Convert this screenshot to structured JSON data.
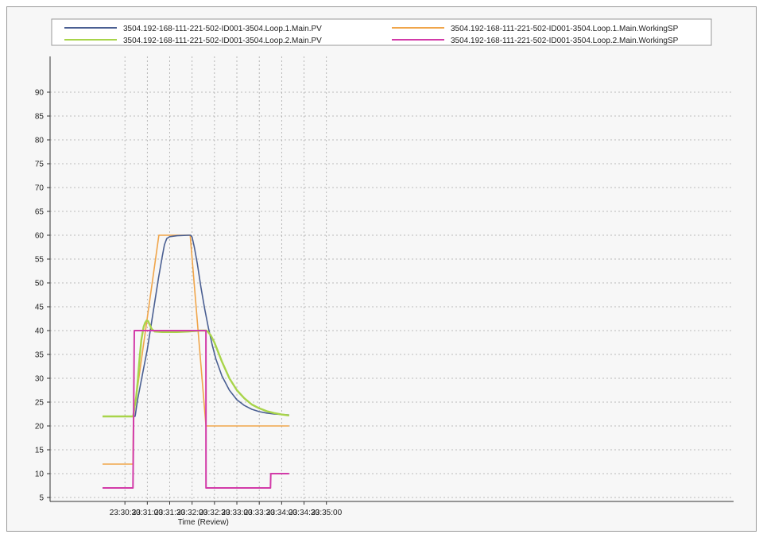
{
  "chart_data": {
    "type": "line",
    "title": "",
    "xlabel": "Time (Review)",
    "ylabel": "",
    "ylim": [
      4,
      95
    ],
    "xlim_seconds": [
      1800,
      2100
    ],
    "grid": true,
    "legend_position": "top",
    "y_ticks": [
      5,
      10,
      15,
      20,
      25,
      30,
      35,
      40,
      45,
      50,
      55,
      60,
      65,
      70,
      75,
      80,
      85,
      90
    ],
    "x_ticks": [
      {
        "t": 1830,
        "label": "23:30:30"
      },
      {
        "t": 1860,
        "label": "23:31:00"
      },
      {
        "t": 1890,
        "label": "23:31:30"
      },
      {
        "t": 1920,
        "label": "23:32:00"
      },
      {
        "t": 1950,
        "label": "23:32:30"
      },
      {
        "t": 1980,
        "label": "23:33:00"
      },
      {
        "t": 2010,
        "label": "23:33:30"
      },
      {
        "t": 2040,
        "label": "23:34:00"
      },
      {
        "t": 2070,
        "label": "23:34:30"
      },
      {
        "t": 2100,
        "label": "23:35:00"
      }
    ],
    "series": [
      {
        "name": "3504.192-168-111-221-502-ID001-3504.Loop.1.Main.PV",
        "color": "#4a5f92",
        "points": [
          [
            1842.5,
            22
          ],
          [
            1843.5,
            22
          ],
          [
            1844,
            22.3
          ],
          [
            1845,
            23.5
          ],
          [
            1847,
            25.5
          ],
          [
            1850,
            28
          ],
          [
            1855,
            32
          ],
          [
            1860,
            36
          ],
          [
            1865,
            41
          ],
          [
            1870,
            46
          ],
          [
            1875,
            51
          ],
          [
            1880,
            55.5
          ],
          [
            1883,
            58
          ],
          [
            1886,
            59.3
          ],
          [
            1890,
            59.7
          ],
          [
            1900,
            59.9
          ],
          [
            1915,
            60
          ],
          [
            1918,
            60
          ],
          [
            1920,
            59.6
          ],
          [
            1923,
            57.5
          ],
          [
            1927,
            54
          ],
          [
            1932,
            49
          ],
          [
            1937,
            44.5
          ],
          [
            1942,
            40.5
          ],
          [
            1947,
            37
          ],
          [
            1952,
            34
          ],
          [
            1960,
            30.5
          ],
          [
            1970,
            27.5
          ],
          [
            1980,
            25.5
          ],
          [
            1990,
            24.3
          ],
          [
            2000,
            23.5
          ],
          [
            2010,
            23
          ],
          [
            2020,
            22.7
          ],
          [
            2030,
            22.5
          ],
          [
            2040,
            22.4
          ],
          [
            2050,
            22.3
          ]
        ]
      },
      {
        "name": "3504.192-168-111-221-502-ID001-3504.Loop.1.Main.WorkingSP",
        "color": "#f0a54a",
        "points": [
          [
            1800,
            12
          ],
          [
            1840.8,
            12
          ],
          [
            1841.4,
            22
          ],
          [
            1875.5,
            60
          ],
          [
            1917.5,
            60
          ],
          [
            1938.3,
            20.5
          ],
          [
            1938.8,
            20
          ],
          [
            2050,
            20
          ]
        ]
      },
      {
        "name": "3504.192-168-111-221-502-ID001-3504.Loop.2.Main.PV",
        "color": "#a8d44a",
        "points": [
          [
            1800,
            22
          ],
          [
            1841,
            22
          ],
          [
            1842,
            23
          ],
          [
            1845,
            26
          ],
          [
            1847,
            29
          ],
          [
            1849.5,
            34
          ],
          [
            1852,
            38
          ],
          [
            1855,
            40.7
          ],
          [
            1857,
            41.6
          ],
          [
            1859,
            42.1
          ],
          [
            1861,
            42
          ],
          [
            1863,
            41.3
          ],
          [
            1866,
            40.3
          ],
          [
            1870,
            39.8
          ],
          [
            1880,
            39.7
          ],
          [
            1890,
            39.7
          ],
          [
            1900,
            39.7
          ],
          [
            1915,
            39.8
          ],
          [
            1930,
            40
          ],
          [
            1939,
            40
          ],
          [
            1941,
            39.8
          ],
          [
            1945,
            39
          ],
          [
            1950,
            37.5
          ],
          [
            1955,
            35.5
          ],
          [
            1960,
            33.5
          ],
          [
            1970,
            30
          ],
          [
            1980,
            27.5
          ],
          [
            1990,
            25.8
          ],
          [
            2000,
            24.5
          ],
          [
            2010,
            23.7
          ],
          [
            2020,
            23.1
          ],
          [
            2030,
            22.7
          ],
          [
            2040,
            22.4
          ],
          [
            2050,
            22.2
          ]
        ]
      },
      {
        "name": "3504.192-168-111-221-502-ID001-3504.Loop.2.Main.WorkingSP",
        "color": "#d23aa8",
        "points": [
          [
            1800,
            7
          ],
          [
            1840.8,
            7
          ],
          [
            1841.6,
            22
          ],
          [
            1842.6,
            40
          ],
          [
            1938.5,
            40
          ],
          [
            1938.7,
            7
          ],
          [
            2025,
            7
          ],
          [
            2025.5,
            10
          ],
          [
            2050,
            10
          ]
        ]
      }
    ]
  }
}
